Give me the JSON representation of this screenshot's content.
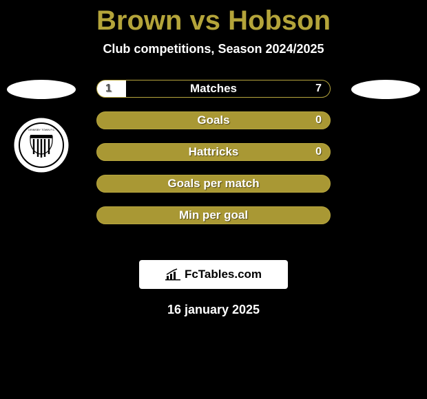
{
  "title": "Brown vs Hobson",
  "subtitle": "Club competitions, Season 2024/2025",
  "date": "16 january 2025",
  "watermark_text": "FcTables.com",
  "colors": {
    "background": "#000000",
    "title": "#b4a43a",
    "subtitle": "#ffffff",
    "date": "#ffffff",
    "bar_track": "#a99834",
    "bar_border": "#b7a63e",
    "bar_label": "#ffffff",
    "bar_value": "#ffffff",
    "left_fill": "#ffffff",
    "right_fill": "#000000",
    "oval_left": "#ffffff",
    "oval_right_top": "#ffffff",
    "oval_right_bottom": "#000000",
    "watermark_bg": "#ffffff",
    "watermark_text": "#000000",
    "badge_bg": "#ffffff",
    "badge_ring": "#000000"
  },
  "typography": {
    "title_fontsize": 40,
    "subtitle_fontsize": 18,
    "bar_label_fontsize": 17,
    "date_fontsize": 18
  },
  "bars": [
    {
      "label": "Matches",
      "left": "1",
      "right": "7",
      "left_pct": 12.5,
      "right_pct": 87.5
    },
    {
      "label": "Goals",
      "left": "",
      "right": "0",
      "left_pct": 0,
      "right_pct": 0
    },
    {
      "label": "Hattricks",
      "left": "",
      "right": "0",
      "left_pct": 0,
      "right_pct": 0
    },
    {
      "label": "Goals per match",
      "left": "",
      "right": "",
      "left_pct": 0,
      "right_pct": 0
    },
    {
      "label": "Min per goal",
      "left": "",
      "right": "",
      "left_pct": 0,
      "right_pct": 0
    }
  ]
}
